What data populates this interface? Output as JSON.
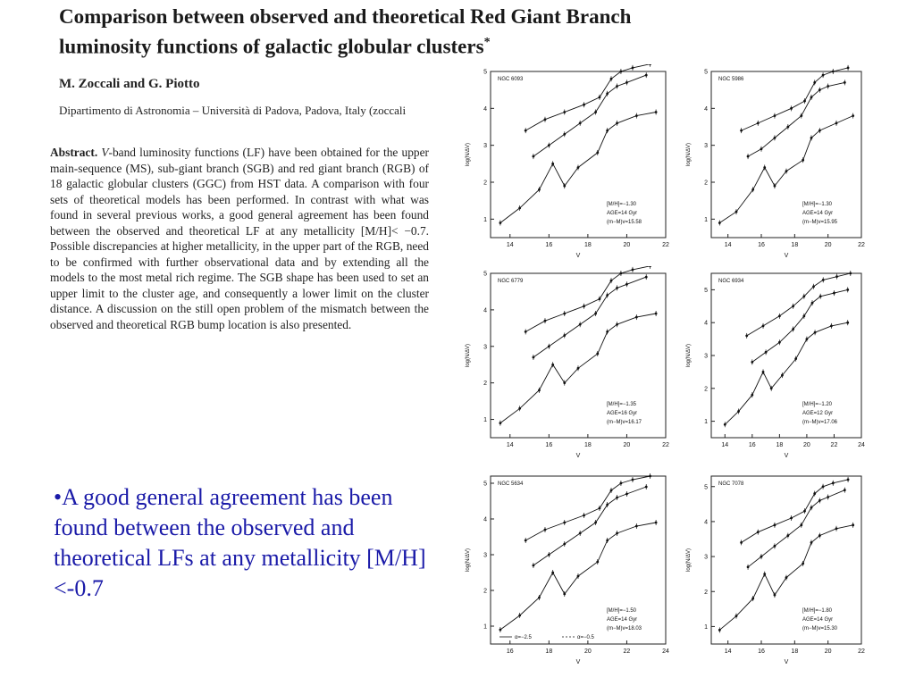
{
  "paper": {
    "title_line1": "Comparison between observed and theoretical Red Giant Branch",
    "title_line2": "luminosity functions of galactic globular clusters",
    "title_mark": "*",
    "authors": "M. Zoccali and G. Piotto",
    "affiliation": "Dipartimento di Astronomia – Università di Padova, Padova, Italy (zoccali",
    "abstract_heading": "Abstract.",
    "abstract_band": "V",
    "abstract_text": "-band luminosity functions (LF) have been obtained for the upper main-sequence (MS), sub-giant branch (SGB) and red giant branch (RGB) of 18 galactic globular clusters (GGC) from HST data. A comparison with four sets of theoretical models has been performed. In contrast with what was found in several previous works, a good general agreement has been found between the observed and theoretical LF at any metallicity [M/H]< −0.7. Possible discrepancies at higher metallicity, in the upper part of the RGB, need to be confirmed with further observational data and by extending all the models to the most metal rich regime. The SGB shape has been used to set an upper limit to the cluster age, and consequently a lower limit on the cluster distance. A discussion on the still open problem of the mismatch between the observed and theoretical RGB bump location is also presented."
  },
  "slide": {
    "bullet": "•A good general agreement has been found between the observed and theoretical LFs at any metallicity [M/H]<-0.7"
  },
  "chart_data": [
    {
      "type": "scatter",
      "title": "NGC 6093",
      "xlabel": "V",
      "ylabel": "log(N/ΔV)",
      "xlim": [
        13,
        22
      ],
      "ylim": [
        0.5,
        5
      ],
      "xticks": [
        14,
        16,
        18,
        20,
        22
      ],
      "yticks": [
        1,
        2,
        3,
        4,
        5
      ],
      "legend": [
        "[M/H]=−1.30",
        "AGE=14 Gyr",
        "(m−M)v=15.58"
      ],
      "series": [
        {
          "x": [
            13.5,
            14.5,
            15.5,
            16.2,
            16.8,
            17.5,
            18.5,
            19.0,
            19.5,
            20.5,
            21.5
          ],
          "y": [
            0.9,
            1.3,
            1.8,
            2.5,
            1.9,
            2.4,
            2.8,
            3.4,
            3.6,
            3.8,
            3.9
          ]
        },
        {
          "x": [
            15.2,
            16.0,
            16.8,
            17.6,
            18.4,
            19.0,
            19.5,
            20.0,
            21.0
          ],
          "y": [
            2.7,
            3.0,
            3.3,
            3.6,
            3.9,
            4.4,
            4.6,
            4.7,
            4.9
          ]
        },
        {
          "x": [
            14.8,
            15.8,
            16.8,
            17.8,
            18.6,
            19.2,
            19.7,
            20.3,
            21.2
          ],
          "y": [
            3.4,
            3.7,
            3.9,
            4.1,
            4.3,
            4.8,
            5.0,
            5.1,
            5.2
          ]
        }
      ]
    },
    {
      "type": "scatter",
      "title": "NGC 5986",
      "xlabel": "V",
      "ylabel": "log(N/ΔV)",
      "xlim": [
        13,
        22
      ],
      "ylim": [
        0.5,
        5
      ],
      "xticks": [
        14,
        16,
        18,
        20,
        22
      ],
      "yticks": [
        1,
        2,
        3,
        4,
        5
      ],
      "legend": [
        "[M/H]=−1.30",
        "AGE=14 Gyr",
        "(m−M)v=15.95"
      ],
      "series": [
        {
          "x": [
            13.5,
            14.5,
            15.5,
            16.2,
            16.8,
            17.5,
            18.5,
            19.0,
            19.5,
            20.5,
            21.5
          ],
          "y": [
            0.9,
            1.2,
            1.8,
            2.4,
            1.9,
            2.3,
            2.6,
            3.2,
            3.4,
            3.6,
            3.8
          ]
        },
        {
          "x": [
            15.2,
            16.0,
            16.8,
            17.6,
            18.4,
            19.0,
            19.5,
            20.0,
            21.0
          ],
          "y": [
            2.7,
            2.9,
            3.2,
            3.5,
            3.8,
            4.3,
            4.5,
            4.6,
            4.7
          ]
        },
        {
          "x": [
            14.8,
            15.8,
            16.8,
            17.8,
            18.6,
            19.2,
            19.7,
            20.3,
            21.2
          ],
          "y": [
            3.4,
            3.6,
            3.8,
            4.0,
            4.2,
            4.7,
            4.9,
            5.0,
            5.1
          ]
        }
      ]
    },
    {
      "type": "scatter",
      "title": "NGC 6779",
      "xlabel": "V",
      "ylabel": "log(N/ΔV)",
      "xlim": [
        13,
        22
      ],
      "ylim": [
        0.5,
        5
      ],
      "xticks": [
        14,
        16,
        18,
        20,
        22
      ],
      "yticks": [
        1,
        2,
        3,
        4,
        5
      ],
      "legend": [
        "[M/H]=−1.35",
        "AGE=16 Gyr",
        "(m−M)v=16.17"
      ],
      "series": [
        {
          "x": [
            13.5,
            14.5,
            15.5,
            16.2,
            16.8,
            17.5,
            18.5,
            19.0,
            19.5,
            20.5,
            21.5
          ],
          "y": [
            0.9,
            1.3,
            1.8,
            2.5,
            2.0,
            2.4,
            2.8,
            3.4,
            3.6,
            3.8,
            3.9
          ]
        },
        {
          "x": [
            15.2,
            16.0,
            16.8,
            17.6,
            18.4,
            19.0,
            19.5,
            20.0,
            21.0
          ],
          "y": [
            2.7,
            3.0,
            3.3,
            3.6,
            3.9,
            4.4,
            4.6,
            4.7,
            4.9
          ]
        },
        {
          "x": [
            14.8,
            15.8,
            16.8,
            17.8,
            18.6,
            19.2,
            19.7,
            20.3,
            21.2
          ],
          "y": [
            3.4,
            3.7,
            3.9,
            4.1,
            4.3,
            4.8,
            5.0,
            5.1,
            5.2
          ]
        }
      ]
    },
    {
      "type": "scatter",
      "title": "NGC 6934",
      "xlabel": "V",
      "ylabel": "log(N/ΔV)",
      "xlim": [
        13,
        24
      ],
      "ylim": [
        0.5,
        5.5
      ],
      "xticks": [
        14,
        16,
        18,
        20,
        22,
        24
      ],
      "yticks": [
        1,
        2,
        3,
        4,
        5
      ],
      "legend": [
        "[M/H]=−1.20",
        "AGE=12 Gyr",
        "(m−M)v=17.06"
      ],
      "series": [
        {
          "x": [
            14.0,
            15.0,
            16.0,
            16.8,
            17.4,
            18.2,
            19.2,
            20.0,
            20.6,
            21.8,
            23.0
          ],
          "y": [
            0.9,
            1.3,
            1.8,
            2.5,
            2.0,
            2.4,
            2.9,
            3.5,
            3.7,
            3.9,
            4.0
          ]
        },
        {
          "x": [
            16.0,
            17.0,
            18.0,
            19.0,
            19.8,
            20.4,
            21.0,
            22.0,
            23.0
          ],
          "y": [
            2.8,
            3.1,
            3.4,
            3.8,
            4.2,
            4.6,
            4.8,
            4.9,
            5.0
          ]
        },
        {
          "x": [
            15.6,
            16.8,
            18.0,
            19.0,
            19.8,
            20.5,
            21.2,
            22.2,
            23.2
          ],
          "y": [
            3.6,
            3.9,
            4.2,
            4.5,
            4.8,
            5.1,
            5.3,
            5.4,
            5.5
          ]
        }
      ]
    },
    {
      "type": "scatter",
      "title": "NGC 5634",
      "xlabel": "V",
      "ylabel": "log(N/ΔV)",
      "xlim": [
        15,
        24
      ],
      "ylim": [
        0.5,
        5.2
      ],
      "xticks": [
        16,
        18,
        20,
        22,
        24
      ],
      "yticks": [
        1,
        2,
        3,
        4,
        5
      ],
      "legend": [
        "[M/H]=−1.50",
        "AGE=14 Gyr",
        "(m−M)v=18.03"
      ],
      "line_legend": [
        "α=−2.5",
        "α=−0.5"
      ],
      "series": [
        {
          "x": [
            15.5,
            16.5,
            17.5,
            18.2,
            18.8,
            19.5,
            20.5,
            21.0,
            21.5,
            22.5,
            23.5
          ],
          "y": [
            0.9,
            1.3,
            1.8,
            2.5,
            1.9,
            2.4,
            2.8,
            3.4,
            3.6,
            3.8,
            3.9
          ]
        },
        {
          "x": [
            17.2,
            18.0,
            18.8,
            19.6,
            20.4,
            21.0,
            21.5,
            22.0,
            23.0
          ],
          "y": [
            2.7,
            3.0,
            3.3,
            3.6,
            3.9,
            4.4,
            4.6,
            4.7,
            4.9
          ]
        },
        {
          "x": [
            16.8,
            17.8,
            18.8,
            19.8,
            20.6,
            21.2,
            21.7,
            22.3,
            23.2
          ],
          "y": [
            3.4,
            3.7,
            3.9,
            4.1,
            4.3,
            4.8,
            5.0,
            5.1,
            5.2
          ]
        }
      ]
    },
    {
      "type": "scatter",
      "title": "NGC 7078",
      "xlabel": "V",
      "ylabel": "log(N/ΔV)",
      "xlim": [
        13,
        22
      ],
      "ylim": [
        0.5,
        5.3
      ],
      "xticks": [
        14,
        16,
        18,
        20,
        22
      ],
      "yticks": [
        1,
        2,
        3,
        4,
        5
      ],
      "legend": [
        "[M/H]=−1.80",
        "AGE=14 Gyr",
        "(m−M)v=15.30"
      ],
      "series": [
        {
          "x": [
            13.5,
            14.5,
            15.5,
            16.2,
            16.8,
            17.5,
            18.5,
            19.0,
            19.5,
            20.5,
            21.5
          ],
          "y": [
            0.9,
            1.3,
            1.8,
            2.5,
            1.9,
            2.4,
            2.8,
            3.4,
            3.6,
            3.8,
            3.9
          ]
        },
        {
          "x": [
            15.2,
            16.0,
            16.8,
            17.6,
            18.4,
            19.0,
            19.5,
            20.0,
            21.0
          ],
          "y": [
            2.7,
            3.0,
            3.3,
            3.6,
            3.9,
            4.4,
            4.6,
            4.7,
            4.9
          ]
        },
        {
          "x": [
            14.8,
            15.8,
            16.8,
            17.8,
            18.6,
            19.2,
            19.7,
            20.3,
            21.2
          ],
          "y": [
            3.4,
            3.7,
            3.9,
            4.1,
            4.3,
            4.8,
            5.0,
            5.1,
            5.2
          ]
        }
      ]
    }
  ]
}
